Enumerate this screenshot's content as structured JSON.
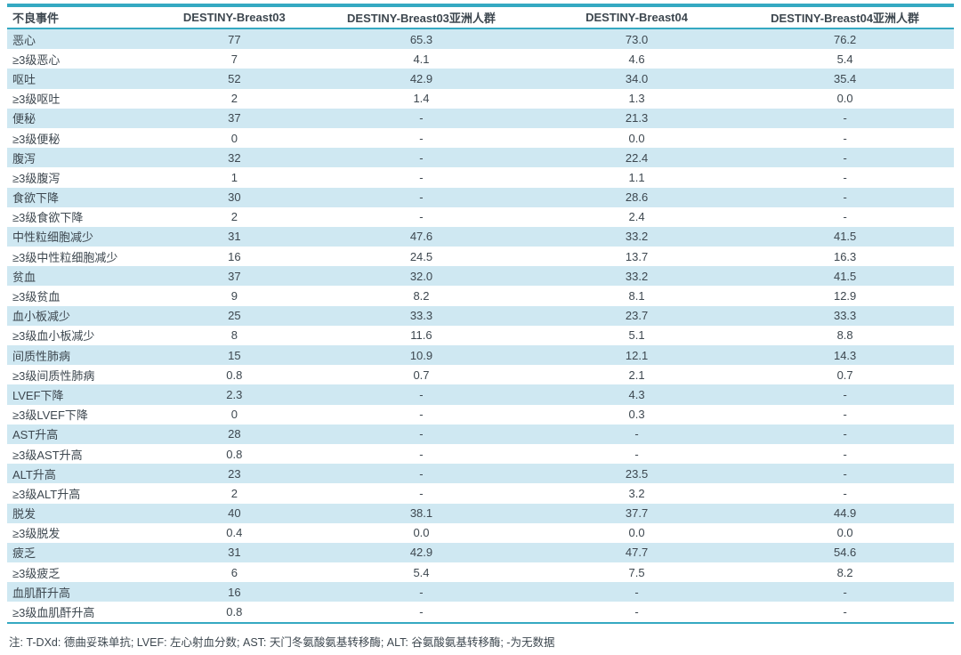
{
  "table": {
    "columns": [
      "不良事件",
      "DESTINY-Breast03",
      "DESTINY-Breast03亚洲人群",
      "DESTINY-Breast04",
      "DESTINY-Breast04亚洲人群"
    ],
    "rows": [
      [
        "恶心",
        "77",
        "65.3",
        "73.0",
        "76.2"
      ],
      [
        "≥3级恶心",
        "7",
        "4.1",
        "4.6",
        "5.4"
      ],
      [
        "呕吐",
        "52",
        "42.9",
        "34.0",
        "35.4"
      ],
      [
        "≥3级呕吐",
        "2",
        "1.4",
        "1.3",
        "0.0"
      ],
      [
        "便秘",
        "37",
        "-",
        "21.3",
        "-"
      ],
      [
        "≥3级便秘",
        "0",
        "-",
        "0.0",
        "-"
      ],
      [
        "腹泻",
        "32",
        "-",
        "22.4",
        "-"
      ],
      [
        "≥3级腹泻",
        "1",
        "-",
        "1.1",
        "-"
      ],
      [
        "食欲下降",
        "30",
        "-",
        "28.6",
        "-"
      ],
      [
        "≥3级食欲下降",
        "2",
        "-",
        "2.4",
        "-"
      ],
      [
        "中性粒细胞减少",
        "31",
        "47.6",
        "33.2",
        "41.5"
      ],
      [
        "≥3级中性粒细胞减少",
        "16",
        "24.5",
        "13.7",
        "16.3"
      ],
      [
        "贫血",
        "37",
        "32.0",
        "33.2",
        "41.5"
      ],
      [
        "≥3级贫血",
        "9",
        "8.2",
        "8.1",
        "12.9"
      ],
      [
        "血小板减少",
        "25",
        "33.3",
        "23.7",
        "33.3"
      ],
      [
        "≥3级血小板减少",
        "8",
        "11.6",
        "5.1",
        "8.8"
      ],
      [
        "间质性肺病",
        "15",
        "10.9",
        "12.1",
        "14.3"
      ],
      [
        "≥3级间质性肺病",
        "0.8",
        "0.7",
        "2.1",
        "0.7"
      ],
      [
        "LVEF下降",
        "2.3",
        "-",
        "4.3",
        "-"
      ],
      [
        "≥3级LVEF下降",
        "0",
        "-",
        "0.3",
        "-"
      ],
      [
        "AST升高",
        "28",
        "-",
        "-",
        "-"
      ],
      [
        "≥3级AST升高",
        "0.8",
        "-",
        "-",
        "-"
      ],
      [
        "ALT升高",
        "23",
        "-",
        "23.5",
        "-"
      ],
      [
        "≥3级ALT升高",
        "2",
        "-",
        "3.2",
        "-"
      ],
      [
        "脱发",
        "40",
        "38.1",
        "37.7",
        "44.9"
      ],
      [
        "≥3级脱发",
        "0.4",
        "0.0",
        "0.0",
        "0.0"
      ],
      [
        "疲乏",
        "31",
        "42.9",
        "47.7",
        "54.6"
      ],
      [
        "≥3级疲乏",
        "6",
        "5.4",
        "7.5",
        "8.2"
      ],
      [
        "血肌酐升高",
        "16",
        "-",
        "-",
        "-"
      ],
      [
        "≥3级血肌酐升高",
        "0.8",
        "-",
        "-",
        "-"
      ]
    ],
    "footnote": "注: T-DXd: 德曲妥珠单抗; LVEF: 左心射血分数; AST: 天门冬氨酸氨基转移酶; ALT: 谷氨酸氨基转移酶; -为无数据"
  },
  "colors": {
    "accent_teal": "#35a9c2",
    "stripe_blue": "#cfe8f2",
    "text": "#3d474f"
  }
}
